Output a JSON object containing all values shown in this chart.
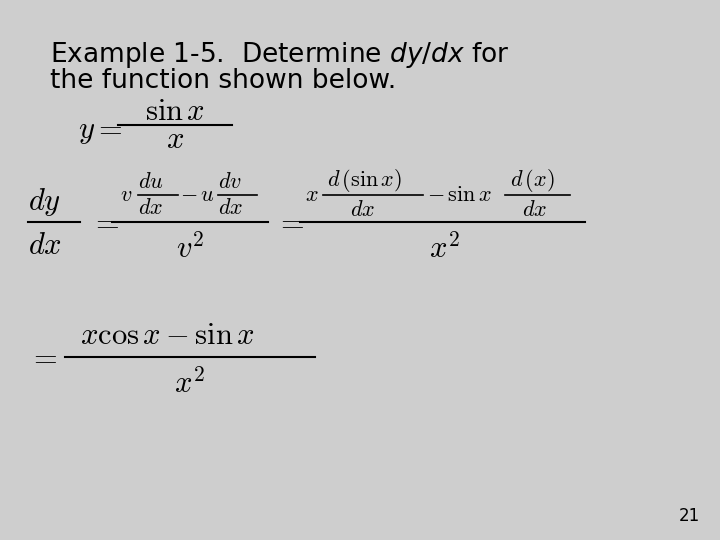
{
  "background_color": "#cecece",
  "page_number": "21",
  "font_size_title": 19,
  "font_size_page": 12,
  "fig_width": 7.2,
  "fig_height": 5.4,
  "dpi": 100
}
